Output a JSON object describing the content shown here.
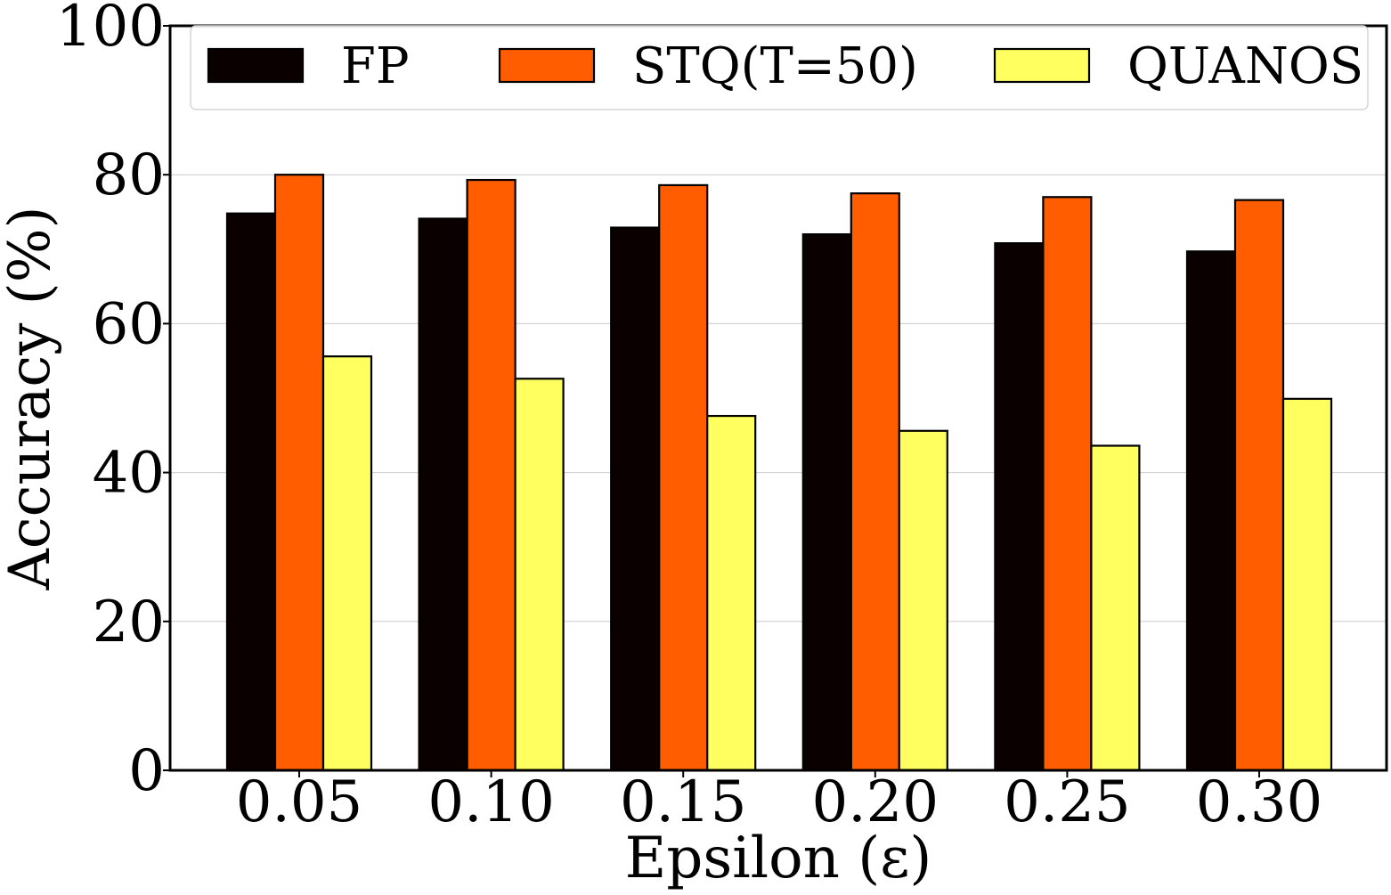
{
  "chart_data": {
    "type": "bar",
    "title": "",
    "xlabel": "Epsilon (ε)",
    "ylabel": "Accuracy (%)",
    "ylim": [
      0,
      100
    ],
    "yticks": [
      0,
      20,
      40,
      60,
      80,
      100
    ],
    "grid": "horizontal",
    "legend_position": "top",
    "categories": [
      "0.05",
      "0.10",
      "0.15",
      "0.20",
      "0.25",
      "0.30"
    ],
    "series": [
      {
        "name": "FP",
        "color": "#0b0000",
        "values": [
          74.8,
          74.1,
          72.9,
          72.0,
          70.8,
          69.7
        ]
      },
      {
        "name": "STQ(T=50)",
        "color": "#ff5d00",
        "values": [
          80.0,
          79.3,
          78.6,
          77.5,
          77.0,
          76.6
        ]
      },
      {
        "name": "QUANOS",
        "color": "#ffff60",
        "values": [
          55.6,
          52.6,
          47.6,
          45.6,
          43.6,
          49.9
        ]
      }
    ]
  }
}
